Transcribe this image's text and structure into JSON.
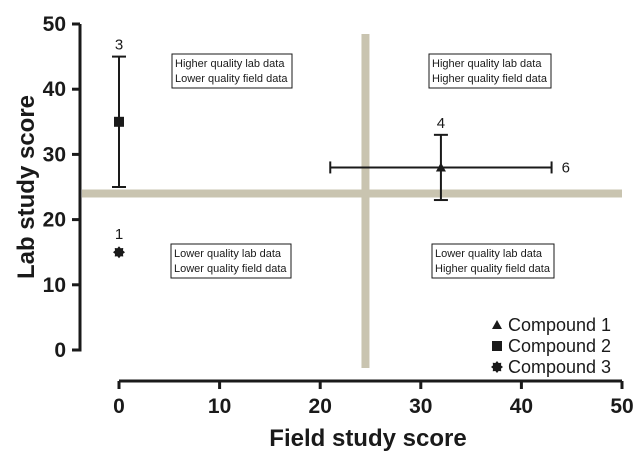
{
  "chart_data": {
    "type": "scatter",
    "title": "",
    "xlabel": "Field study score",
    "ylabel": "Lab study score",
    "xlim": [
      0,
      50
    ],
    "ylim": [
      0,
      50
    ],
    "xticks": [
      "0",
      "10",
      "20",
      "30",
      "40",
      "50"
    ],
    "yticks": [
      "0",
      "10",
      "20",
      "30",
      "40",
      "50"
    ],
    "grid": false,
    "legend_position": "bottom-right",
    "reference_lines": {
      "x": 24.5,
      "y": 24,
      "color": "#c9c4b0"
    },
    "quadrant_labels": {
      "top_left": [
        "Higher quality lab data",
        "Lower quality field data"
      ],
      "top_right": [
        "Higher quality lab data",
        "Higher quality field data"
      ],
      "bottom_left": [
        "Lower quality lab data",
        "Lower quality field data"
      ],
      "bottom_right": [
        "Lower quality lab data",
        "Higher quality field data"
      ]
    },
    "series": [
      {
        "name": "Compound 1",
        "marker": "triangle",
        "points": [
          {
            "x": 32,
            "y": 28,
            "x_err": [
              21,
              43
            ],
            "y_err": [
              23,
              33
            ],
            "labels": [
              "4",
              "6"
            ]
          }
        ]
      },
      {
        "name": "Compound 2",
        "marker": "square",
        "points": [
          {
            "x": 0,
            "y": 35,
            "y_err": [
              25,
              45
            ],
            "labels": [
              "3"
            ]
          }
        ]
      },
      {
        "name": "Compound 3",
        "marker": "star",
        "points": [
          {
            "x": 0,
            "y": 15,
            "labels": [
              "1"
            ]
          }
        ]
      }
    ]
  }
}
